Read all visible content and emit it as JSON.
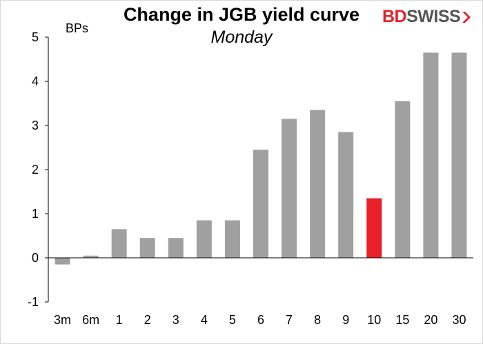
{
  "brand": {
    "name_part1": "BD",
    "name_part2": "SWISS"
  },
  "colors": {
    "bar": "#a0a0a0",
    "highlight": "#e8202a",
    "axis": "#000000"
  },
  "chart_data": {
    "type": "bar",
    "title": "Change in JGB yield curve",
    "subtitle": "Monday",
    "unit_label": "BPs",
    "categories": [
      "3m",
      "6m",
      "1",
      "2",
      "3",
      "4",
      "5",
      "6",
      "7",
      "8",
      "9",
      "10",
      "15",
      "20",
      "30"
    ],
    "values": [
      -0.15,
      0.05,
      0.65,
      0.45,
      0.45,
      0.85,
      0.85,
      2.45,
      3.15,
      3.35,
      2.85,
      1.35,
      3.55,
      4.65,
      4.65
    ],
    "highlight_index": 11,
    "ylim": [
      -1,
      5
    ],
    "yticks": [
      -1,
      0,
      1,
      2,
      3,
      4,
      5
    ],
    "grid": false,
    "legend": "none"
  }
}
